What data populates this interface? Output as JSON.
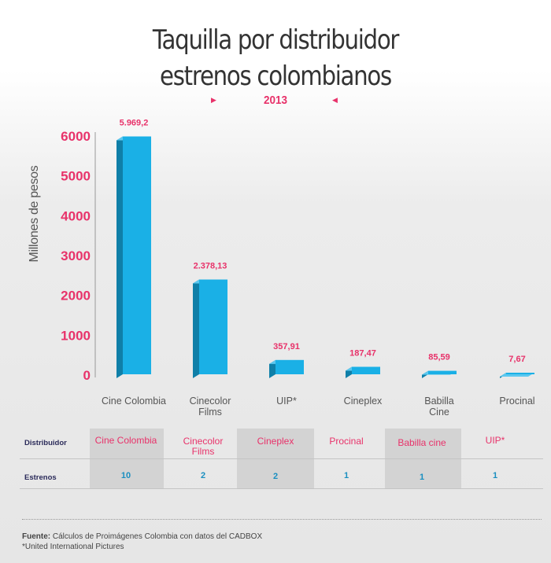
{
  "title": {
    "line1": "Taquilla por distribuidor",
    "line2": "estrenos colombianos"
  },
  "year": "2013",
  "colors": {
    "accent": "#e8326a",
    "bar_face": "#1ab0e6",
    "bar_side": "#0f7fa8",
    "bar_top": "#5cc8ef",
    "number": "#1a8fc0"
  },
  "chart_data": {
    "type": "bar",
    "ylabel": "Millones de pesos",
    "ylim": [
      0,
      6000
    ],
    "yticks": [
      "6000",
      "5000",
      "4000",
      "3000",
      "2000",
      "1000",
      "0"
    ],
    "categories": [
      "Cine Colombia",
      "Cinecolor Films",
      "UIP*",
      "Cineplex",
      "Babilla Cine",
      "Procinal"
    ],
    "category_labels": [
      [
        "Cine Colombia"
      ],
      [
        "Cinecolor",
        "Films"
      ],
      [
        "UIP*"
      ],
      [
        "Cineplex"
      ],
      [
        "Babilla",
        "Cine"
      ],
      [
        "Procinal"
      ]
    ],
    "values": [
      5969.2,
      2378.13,
      357.91,
      187.47,
      85.59,
      7.67
    ],
    "value_labels": [
      "5.969,2",
      "2.378,13",
      "357,91",
      "187,47",
      "85,59",
      "7,67"
    ],
    "grid": false
  },
  "table": {
    "row1_label": "Distribuidor",
    "row2_label": "Estrenos",
    "distributors": [
      [
        "Cine Colombia"
      ],
      [
        "Cinecolor",
        "Films"
      ],
      [
        "Cineplex"
      ],
      [
        "Procinal"
      ],
      [
        "Babilla cine"
      ],
      [
        "UIP*"
      ]
    ],
    "estrenos": [
      "10",
      "2",
      "2",
      "1",
      "1",
      "1"
    ]
  },
  "footer": {
    "source_label": "Fuente:",
    "source_text": " Cálculos de Proimágenes Colombia con datos del CADBOX",
    "note": "*United International Pictures"
  }
}
